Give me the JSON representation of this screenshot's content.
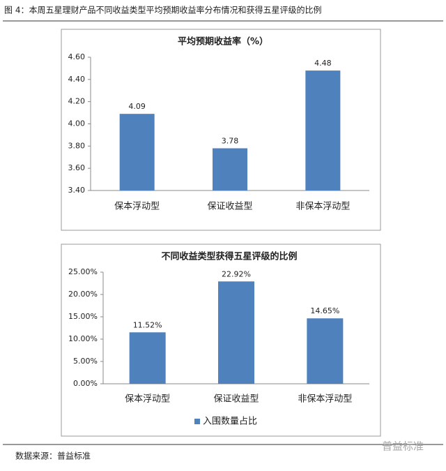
{
  "caption": "图 4：本周五星理财产品不同收益类型平均预期收益率分布情况和获得五星评级的比例",
  "source": "数据来源：普益标准",
  "watermark": "普益标准",
  "chart_data": [
    {
      "type": "bar",
      "title": "平均预期收益率（%）",
      "categories": [
        "保本浮动型",
        "保证收益型",
        "非保本浮动型"
      ],
      "values": [
        4.09,
        3.78,
        4.48
      ],
      "color": "#4f81bd",
      "ylim": [
        3.4,
        4.6
      ],
      "yticks": [
        {
          "value": 3.4,
          "label": "3.40"
        },
        {
          "value": 3.6,
          "label": "3.60"
        },
        {
          "value": 3.8,
          "label": "3.80"
        },
        {
          "value": 4.0,
          "label": "4.00"
        },
        {
          "value": 4.2,
          "label": "4.20"
        },
        {
          "value": 4.4,
          "label": "4.40"
        },
        {
          "value": 4.6,
          "label": "4.60"
        }
      ],
      "grid": false
    },
    {
      "type": "bar",
      "title": "不同收益类型获得五星评级的比例",
      "categories": [
        "保本浮动型",
        "保证收益型",
        "非保本浮动型"
      ],
      "series": [
        {
          "name": "入围数量占比",
          "color": "#4f81bd",
          "values": [
            11.52,
            22.92,
            14.65
          ],
          "value_labels": [
            "11.52%",
            "22.92%",
            "14.65%"
          ]
        }
      ],
      "ylim": [
        0,
        25
      ],
      "yticks": [
        {
          "value": 0,
          "label": "0.00%"
        },
        {
          "value": 5,
          "label": "5.00%"
        },
        {
          "value": 10,
          "label": "10.00%"
        },
        {
          "value": 15,
          "label": "15.00%"
        },
        {
          "value": 20,
          "label": "20.00%"
        },
        {
          "value": 25,
          "label": "25.00%"
        }
      ],
      "grid": false,
      "legend": "bottom"
    }
  ]
}
